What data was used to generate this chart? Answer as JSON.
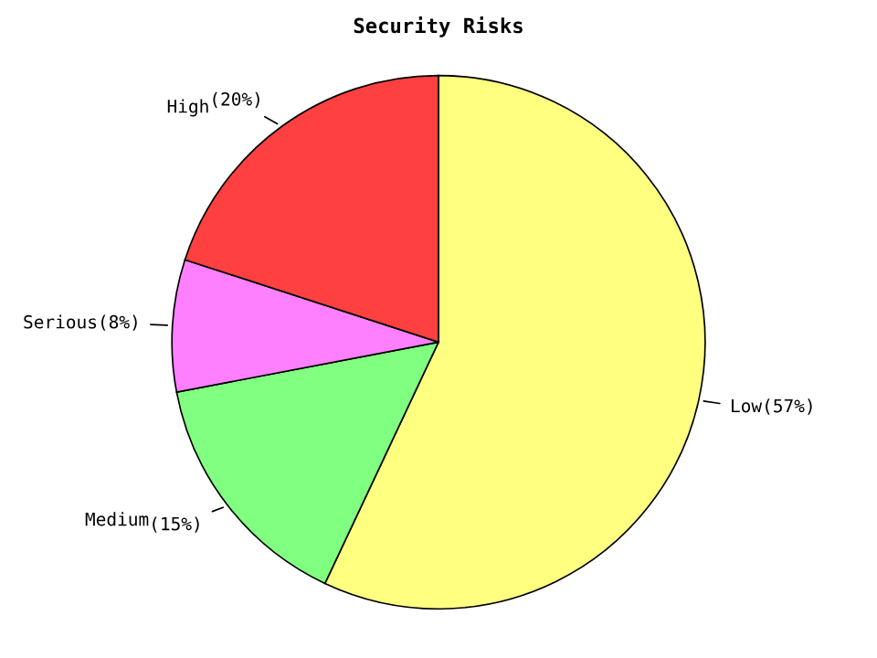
{
  "chart_data": {
    "type": "pie",
    "title": "Security Risks",
    "categories": [
      "Low",
      "Medium",
      "Serious",
      "High"
    ],
    "values": [
      57,
      15,
      8,
      20
    ],
    "colors": [
      "#ffff80",
      "#80ff80",
      "#ff80ff",
      "#ff4040"
    ],
    "value_labels": [
      "(57%)",
      "(15%)",
      "(8%)",
      "(20%)"
    ],
    "legend": false
  }
}
